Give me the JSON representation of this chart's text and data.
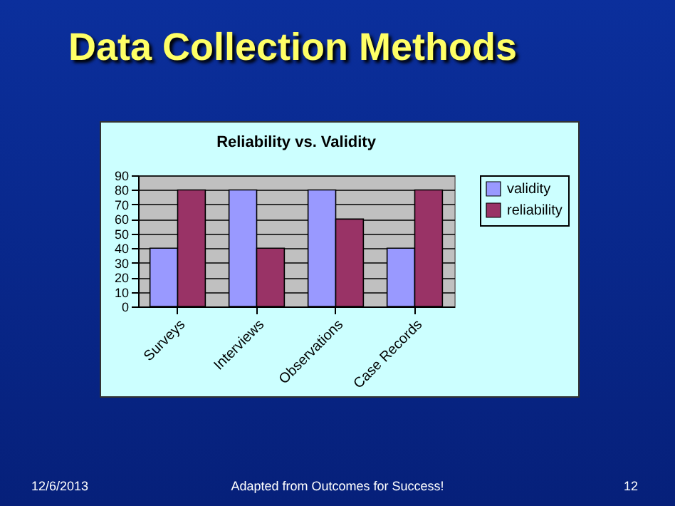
{
  "chart_data": {
    "type": "bar",
    "title": "Data Collection Methods",
    "subtitle": "Reliability vs. Validity",
    "categories": [
      "Surveys",
      "Interviews",
      "Observations",
      "Case Records"
    ],
    "series": [
      {
        "name": "validity",
        "color": "#9999ff",
        "values": [
          40,
          80,
          80,
          40
        ]
      },
      {
        "name": "reliability",
        "color": "#993366",
        "values": [
          80,
          40,
          60,
          80
        ]
      }
    ],
    "ylim": [
      0,
      90
    ],
    "yticks": [
      0,
      10,
      20,
      30,
      40,
      50,
      60,
      70,
      80,
      90
    ],
    "grid": "y",
    "legend": "right",
    "annotations": [
      "12/6/2013",
      "Adapted from Outcomes for Success!",
      "12"
    ]
  }
}
